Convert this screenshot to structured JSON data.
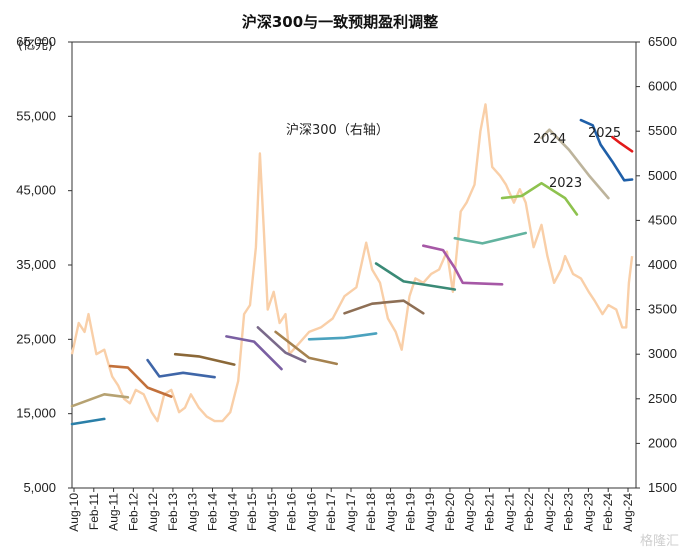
{
  "chart_data": {
    "type": "line",
    "title": "沪深300与一致预期盈利调整",
    "ylabel_left": "(亿元)",
    "ylabel_right": "",
    "yticks_left": [
      "5,000",
      "15,000",
      "25,000",
      "35,000",
      "45,000",
      "55,000",
      "65,000"
    ],
    "yticks_right": [
      "1500",
      "2000",
      "2500",
      "3000",
      "3500",
      "4000",
      "4500",
      "5000",
      "5500",
      "6000",
      "6500"
    ],
    "ylim_left": [
      5000,
      65000
    ],
    "ylim_right": [
      1500,
      6500
    ],
    "xticks": [
      "Aug-10",
      "Feb-11",
      "Aug-11",
      "Feb-12",
      "Aug-12",
      "Feb-13",
      "Aug-13",
      "Feb-14",
      "Aug-14",
      "Feb-15",
      "Aug-15",
      "Feb-16",
      "Aug-16",
      "Feb-17",
      "Aug-17",
      "Feb-18",
      "Aug-18",
      "Feb-19",
      "Aug-19",
      "Feb-20",
      "Aug-20",
      "Feb-21",
      "Aug-21",
      "Feb-22",
      "Aug-22",
      "Feb-23",
      "Aug-23",
      "Feb-24",
      "Aug-24"
    ],
    "annotations": {
      "index_label": "沪深300（右轴）",
      "label_2023": "2023",
      "label_2024": "2024",
      "label_2025": "2025"
    },
    "watermark": "格隆汇",
    "index_series": {
      "name": "沪深300（右轴）",
      "axis": "right",
      "color": "#f9cfa8",
      "x": [
        2010.58,
        2010.75,
        2010.9,
        2011.0,
        2011.2,
        2011.4,
        2011.6,
        2011.75,
        2011.9,
        2012.05,
        2012.2,
        2012.4,
        2012.6,
        2012.75,
        2012.92,
        2013.1,
        2013.3,
        2013.45,
        2013.6,
        2013.8,
        2014.0,
        2014.2,
        2014.4,
        2014.6,
        2014.8,
        2014.95,
        2015.1,
        2015.25,
        2015.35,
        2015.45,
        2015.55,
        2015.7,
        2015.85,
        2016.0,
        2016.1,
        2016.3,
        2016.6,
        2016.9,
        2017.2,
        2017.5,
        2017.8,
        2018.05,
        2018.2,
        2018.4,
        2018.6,
        2018.8,
        2018.95,
        2019.15,
        2019.3,
        2019.5,
        2019.7,
        2019.9,
        2020.1,
        2020.25,
        2020.45,
        2020.6,
        2020.8,
        2020.95,
        2021.08,
        2021.25,
        2021.45,
        2021.6,
        2021.8,
        2021.95,
        2022.1,
        2022.3,
        2022.5,
        2022.65,
        2022.82,
        2023.0,
        2023.1,
        2023.3,
        2023.5,
        2023.7,
        2023.85,
        2024.05,
        2024.2,
        2024.4,
        2024.55,
        2024.65,
        2024.72,
        2024.8
      ],
      "values": [
        3000,
        3350,
        3250,
        3450,
        3000,
        3050,
        2750,
        2650,
        2500,
        2450,
        2600,
        2550,
        2350,
        2250,
        2550,
        2600,
        2350,
        2400,
        2550,
        2400,
        2300,
        2250,
        2250,
        2350,
        2700,
        3450,
        3550,
        4200,
        5250,
        4400,
        3500,
        3700,
        3350,
        3450,
        3000,
        3100,
        3250,
        3300,
        3400,
        3650,
        3750,
        4250,
        3950,
        3800,
        3400,
        3250,
        3050,
        3650,
        3850,
        3800,
        3900,
        3950,
        4150,
        3700,
        4600,
        4700,
        4900,
        5500,
        5800,
        5100,
        5000,
        4900,
        4700,
        4850,
        4700,
        4200,
        4450,
        4100,
        3800,
        3950,
        4100,
        3900,
        3850,
        3700,
        3600,
        3450,
        3550,
        3500,
        3300,
        3300,
        3800,
        4100
      ]
    },
    "series": [
      {
        "name": "",
        "axis": "left",
        "color": "#2a7fa8",
        "x": [
          2010.58,
          2011.4
        ],
        "values": [
          13600,
          14300
        ]
      },
      {
        "name": "",
        "axis": "left",
        "color": "#b6a272",
        "x": [
          2010.58,
          2011.4,
          2012.0
        ],
        "values": [
          16000,
          17600,
          17200
        ]
      },
      {
        "name": "",
        "axis": "left",
        "color": "#c2703a",
        "x": [
          2011.55,
          2012.0,
          2012.5,
          2013.1
        ],
        "values": [
          21400,
          21200,
          18500,
          17300
        ]
      },
      {
        "name": "",
        "axis": "left",
        "color": "#3f66a8",
        "x": [
          2012.5,
          2012.8,
          2013.4,
          2014.2
        ],
        "values": [
          22200,
          20000,
          20500,
          19900
        ]
      },
      {
        "name": "",
        "axis": "left",
        "color": "#8b6838",
        "x": [
          2013.2,
          2013.8,
          2014.7
        ],
        "values": [
          23000,
          22700,
          21600
        ]
      },
      {
        "name": "",
        "axis": "left",
        "color": "#7a5fa2",
        "x": [
          2014.5,
          2015.2,
          2015.9
        ],
        "values": [
          25400,
          24700,
          21000
        ]
      },
      {
        "name": "",
        "axis": "left",
        "color": "#7a6a8a",
        "x": [
          2015.3,
          2016.0,
          2016.5
        ],
        "values": [
          26600,
          23200,
          22000
        ]
      },
      {
        "name": "",
        "axis": "left",
        "color": "#a5824f",
        "x": [
          2015.75,
          2016.6,
          2017.3
        ],
        "values": [
          26000,
          22500,
          21700
        ]
      },
      {
        "name": "",
        "axis": "left",
        "color": "#4ba2be",
        "x": [
          2016.6,
          2017.5,
          2018.3
        ],
        "values": [
          25000,
          25200,
          25800
        ]
      },
      {
        "name": "",
        "axis": "left",
        "color": "#8e6f55",
        "x": [
          2017.5,
          2018.2,
          2019.0,
          2019.5
        ],
        "values": [
          28500,
          29800,
          30200,
          28500
        ]
      },
      {
        "name": "",
        "axis": "left",
        "color": "#3a8a76",
        "x": [
          2018.3,
          2019.0,
          2020.3
        ],
        "values": [
          35200,
          32800,
          31700
        ]
      },
      {
        "name": "",
        "axis": "left",
        "color": "#a658a6",
        "x": [
          2019.5,
          2020.0,
          2020.3,
          2020.5,
          2021.5
        ],
        "values": [
          37600,
          37000,
          34600,
          32600,
          32400
        ]
      },
      {
        "name": "",
        "axis": "left",
        "color": "#62b39f",
        "x": [
          2020.3,
          2020.6,
          2021.0,
          2022.1
        ],
        "values": [
          38600,
          38300,
          37900,
          39300
        ]
      },
      {
        "name": "",
        "axis": "left",
        "color": "#8ec24e",
        "x": [
          2021.5,
          2022.0,
          2022.5,
          2023.1,
          2023.4
        ],
        "values": [
          44000,
          44300,
          46000,
          44000,
          41800
        ]
      },
      {
        "name": "",
        "axis": "left",
        "color": "#bdb49c",
        "x": [
          2022.5,
          2022.7,
          2023.2,
          2023.7,
          2024.2
        ],
        "values": [
          52100,
          53200,
          50500,
          47100,
          44000
        ]
      },
      {
        "name": "",
        "axis": "left",
        "color": "#1f5fa8",
        "x": [
          2023.5,
          2023.8,
          2024.0,
          2024.3,
          2024.6,
          2024.8
        ],
        "values": [
          54500,
          53800,
          51200,
          48900,
          46400,
          46500
        ]
      },
      {
        "name": "",
        "axis": "left",
        "color": "#e21a1a",
        "x": [
          2024.3,
          2024.5,
          2024.8
        ],
        "values": [
          52200,
          51400,
          50300
        ]
      }
    ]
  }
}
